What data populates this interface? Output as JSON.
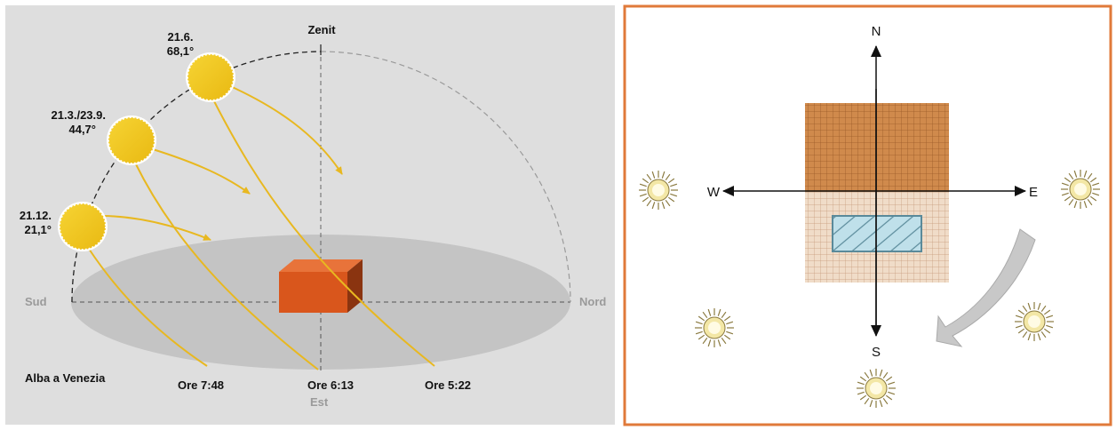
{
  "left_panel": {
    "zenith_label": "Zenit",
    "south_label": "Sud",
    "north_label": "Nord",
    "east_label": "Est",
    "caption": "Alba a Venezia",
    "suns": [
      {
        "date": "21.6.",
        "angle": "68,1°"
      },
      {
        "date": "21.3./23.9.",
        "angle": "44,7°"
      },
      {
        "date": "21.12.",
        "angle": "21,1°"
      }
    ],
    "sunrise_times": [
      "Ore 7:48",
      "Ore 6:13",
      "Ore 5:22"
    ]
  },
  "right_panel": {
    "north": "N",
    "south": "S",
    "west": "W",
    "east": "E"
  },
  "colors": {
    "sun_fill": "#f0c419",
    "ray": "#e8b820",
    "building_front": "#d9561c",
    "roof": "#d08a4c",
    "frame": "#e07a3a",
    "background_left": "#dedede",
    "ground": "#c4c4c4"
  }
}
